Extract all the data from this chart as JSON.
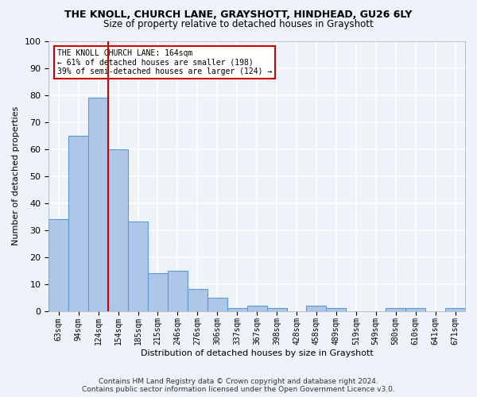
{
  "title": "THE KNOLL, CHURCH LANE, GRAYSHOTT, HINDHEAD, GU26 6LY",
  "subtitle": "Size of property relative to detached houses in Grayshott",
  "xlabel": "Distribution of detached houses by size in Grayshott",
  "ylabel": "Number of detached properties",
  "bar_values": [
    34,
    65,
    79,
    60,
    33,
    14,
    15,
    8,
    5,
    1,
    2,
    1,
    0,
    2,
    1,
    0,
    0,
    1,
    1,
    0,
    1
  ],
  "bar_labels": [
    "63sqm",
    "94sqm",
    "124sqm",
    "154sqm",
    "185sqm",
    "215sqm",
    "246sqm",
    "276sqm",
    "306sqm",
    "337sqm",
    "367sqm",
    "398sqm",
    "428sqm",
    "458sqm",
    "489sqm",
    "519sqm",
    "549sqm",
    "580sqm",
    "610sqm",
    "641sqm",
    "671sqm"
  ],
  "bar_color": "#aec6e8",
  "bar_edge_color": "#5b9bd5",
  "vline_color": "#cc0000",
  "vline_pos": 2.5,
  "ylim": [
    0,
    100
  ],
  "yticks": [
    0,
    10,
    20,
    30,
    40,
    50,
    60,
    70,
    80,
    90,
    100
  ],
  "annotation_box_text": "THE KNOLL CHURCH LANE: 164sqm\n← 61% of detached houses are smaller (198)\n39% of semi-detached houses are larger (124) →",
  "annotation_box_color": "#ffffff",
  "annotation_box_edge_color": "#cc0000",
  "footer_line1": "Contains HM Land Registry data © Crown copyright and database right 2024.",
  "footer_line2": "Contains public sector information licensed under the Open Government Licence v3.0.",
  "background_color": "#eef2f9",
  "grid_color": "#ffffff"
}
